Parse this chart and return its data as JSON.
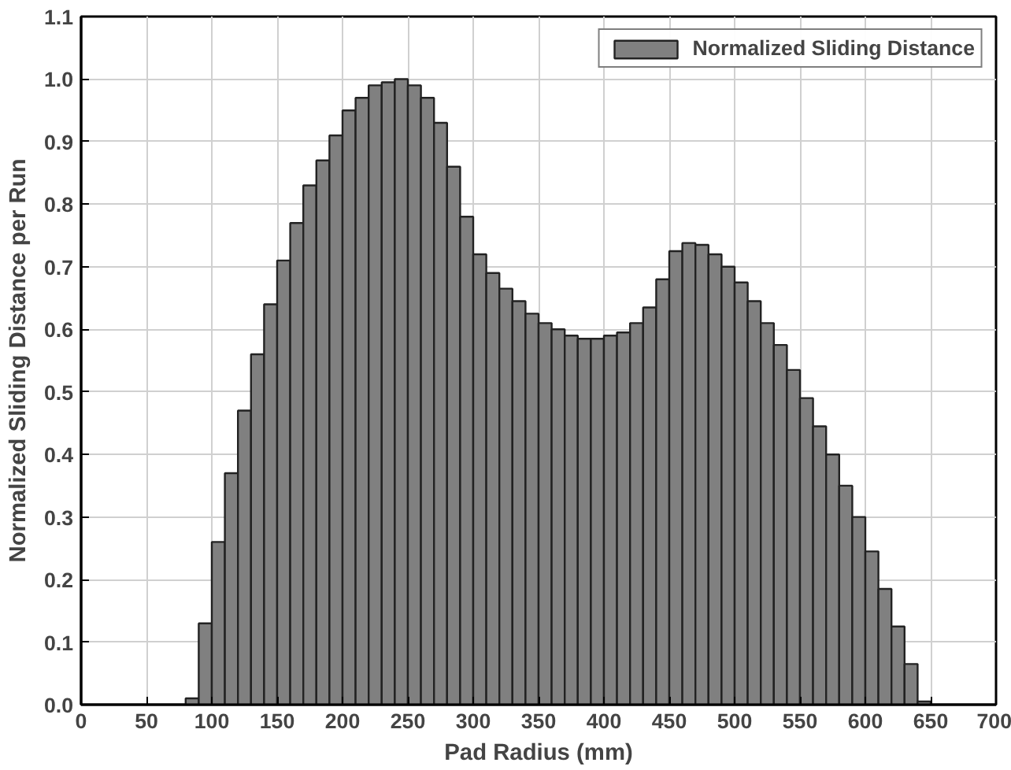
{
  "chart_data": {
    "type": "histogram",
    "xlabel": "Pad Radius (mm)",
    "ylabel": "Normalized Sliding Distance per Run",
    "bins": [
      80,
      90,
      100,
      110,
      120,
      130,
      140,
      150,
      160,
      170,
      180,
      190,
      200,
      210,
      220,
      230,
      240,
      250,
      260,
      270,
      280,
      290,
      300,
      310,
      320,
      330,
      340,
      350,
      360,
      370,
      380,
      390,
      400,
      410,
      420,
      430,
      440,
      450,
      460,
      470,
      480,
      490,
      500,
      510,
      520,
      530,
      540,
      550,
      560,
      570,
      580,
      590,
      600,
      610,
      620,
      630,
      640,
      650
    ],
    "series": [
      {
        "name": "Normalized Sliding Distance",
        "color": "#808080",
        "values": [
          0.01,
          0.13,
          0.26,
          0.37,
          0.47,
          0.56,
          0.64,
          0.71,
          0.77,
          0.83,
          0.87,
          0.91,
          0.95,
          0.97,
          0.99,
          0.995,
          1.0,
          0.99,
          0.97,
          0.93,
          0.86,
          0.78,
          0.72,
          0.69,
          0.665,
          0.645,
          0.625,
          0.61,
          0.6,
          0.59,
          0.585,
          0.585,
          0.59,
          0.595,
          0.61,
          0.635,
          0.68,
          0.725,
          0.738,
          0.735,
          0.72,
          0.7,
          0.675,
          0.645,
          0.61,
          0.575,
          0.535,
          0.49,
          0.445,
          0.4,
          0.35,
          0.3,
          0.245,
          0.185,
          0.125,
          0.065,
          0.005
        ]
      }
    ],
    "xlim": [
      0,
      700
    ],
    "xticks": [
      0,
      50,
      100,
      150,
      200,
      250,
      300,
      350,
      400,
      450,
      500,
      550,
      600,
      650,
      700
    ],
    "ylim": [
      0,
      1.1
    ],
    "yticks": [
      {
        "value": 0,
        "label": "0.0"
      },
      0.1,
      0.2,
      0.3,
      0.4,
      0.5,
      0.6,
      0.7,
      0.8,
      0.9,
      {
        "value": 1,
        "label": "1.0"
      },
      1.1
    ],
    "grid": true,
    "legend": "top right"
  }
}
